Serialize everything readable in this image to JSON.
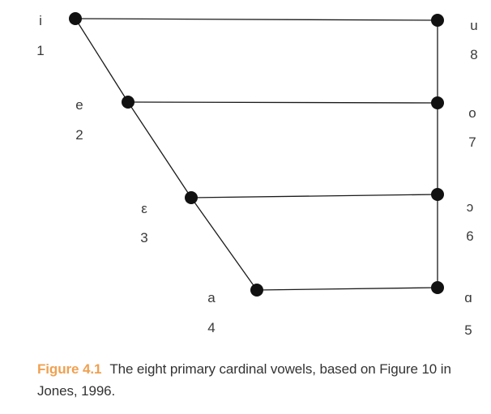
{
  "vowels": [
    {
      "id": "v1",
      "symbol": "i",
      "number": "1"
    },
    {
      "id": "v2",
      "symbol": "e",
      "number": "2"
    },
    {
      "id": "v3",
      "symbol": "ε",
      "number": "3"
    },
    {
      "id": "v4",
      "symbol": "a",
      "number": "4"
    },
    {
      "id": "v5",
      "symbol": "ɑ",
      "number": "5"
    },
    {
      "id": "v6",
      "symbol": "ɔ",
      "number": "6"
    },
    {
      "id": "v7",
      "symbol": "o",
      "number": "7"
    },
    {
      "id": "v8",
      "symbol": "u",
      "number": "8"
    }
  ],
  "caption": {
    "figure_label": "Figure 4.1",
    "text": "The eight primary cardinal vowels, based on Figure 10 in Jones, 1996."
  },
  "colors": {
    "line": "#1a1a1a",
    "dot": "#111111",
    "label": "#3a3a3a",
    "figure_label": "#f0a050",
    "caption_text": "#333333"
  }
}
